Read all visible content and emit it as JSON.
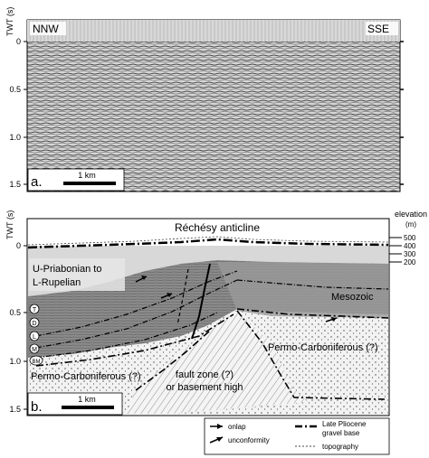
{
  "panel_a": {
    "y_axis_label": "TWT (s)",
    "ticks": [
      "0",
      "0.5",
      "1.0",
      "1.5"
    ],
    "left_direction": "NNW",
    "right_direction": "SSE",
    "panel_label": "a.",
    "scale_label": "1 km"
  },
  "panel_b": {
    "y_axis_label": "TWT (s)",
    "ticks": [
      "0",
      "0.5",
      "1.0",
      "1.5"
    ],
    "title": "Réchésy anticline",
    "elevation_label": "elevation",
    "elevation_unit": "(m)",
    "elevation_ticks": [
      "500",
      "400",
      "300",
      "200"
    ],
    "panel_label": "b.",
    "scale_label": "1 km",
    "units": {
      "priabonian_line1": "U-Priabonian to",
      "priabonian_line2": "L-Rupelian",
      "mesozoic": "Mesozoic",
      "permo_right": "Permo-Carboniferous (?)",
      "permo_left": "Permo-Carboniferous (?)",
      "fault_line1": "fault zone (?)",
      "fault_line2": "or basement high"
    },
    "horizon_markers": [
      "T",
      "D",
      "L",
      "M",
      "BM"
    ],
    "legend": {
      "onlap": "onlap",
      "unconformity": "unconformity",
      "gravel_line1": "Late Pliocene",
      "gravel_line2": "gravel base",
      "topography": "topography"
    }
  }
}
